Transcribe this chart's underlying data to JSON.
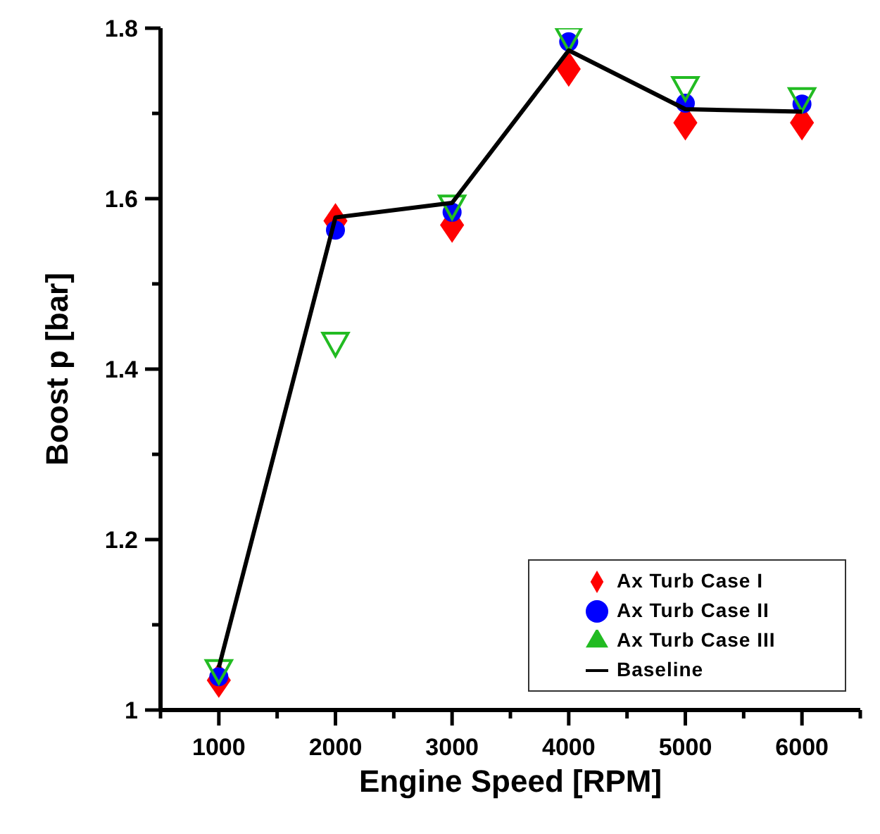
{
  "chart_data": {
    "type": "scatter",
    "xlabel": "Engine Speed [RPM]",
    "ylabel": "Boost p [bar]",
    "x": [
      1000,
      2000,
      3000,
      4000,
      5000,
      6000
    ],
    "series": [
      {
        "name": "Ax Turb Case I",
        "color": "#ff0000",
        "marker": "diamond",
        "values": [
          1.035,
          1.574,
          1.569,
          1.752,
          1.689,
          1.689
        ]
      },
      {
        "name": "Ax Turb Case II",
        "color": "#0000ff",
        "marker": "circle",
        "values": [
          1.039,
          1.563,
          1.584,
          1.784,
          1.712,
          1.711
        ]
      },
      {
        "name": "Ax Turb Case III",
        "color": "#22bb22",
        "marker": "triangle",
        "values": [
          1.047,
          1.431,
          1.592,
          1.789,
          1.731,
          1.718
        ]
      },
      {
        "name": "Baseline",
        "type": "line",
        "color": "#000000",
        "marker": "none",
        "line_style": "solid",
        "values": [
          1.05,
          1.578,
          1.595,
          1.774,
          1.705,
          1.702
        ]
      }
    ],
    "xlim": [
      500,
      6500
    ],
    "xticks": [
      {
        "value": 500,
        "label": null
      },
      1000,
      {
        "value": 1500,
        "label": null
      },
      2000,
      {
        "value": 2500,
        "label": null
      },
      3000,
      {
        "value": 3500,
        "label": null
      },
      4000,
      {
        "value": 4500,
        "label": null
      },
      5000,
      {
        "value": 5500,
        "label": null
      },
      6000,
      {
        "value": 6500,
        "label": null
      }
    ],
    "ylim": [
      1,
      1.8
    ],
    "yticks": [
      1,
      {
        "value": 1.1,
        "label": null
      },
      1.2,
      {
        "value": 1.3,
        "label": null
      },
      1.4,
      {
        "value": 1.5,
        "label": null
      },
      1.6,
      {
        "value": 1.7,
        "label": null
      },
      1.8
    ],
    "grid": false,
    "legend": "bottom right"
  }
}
